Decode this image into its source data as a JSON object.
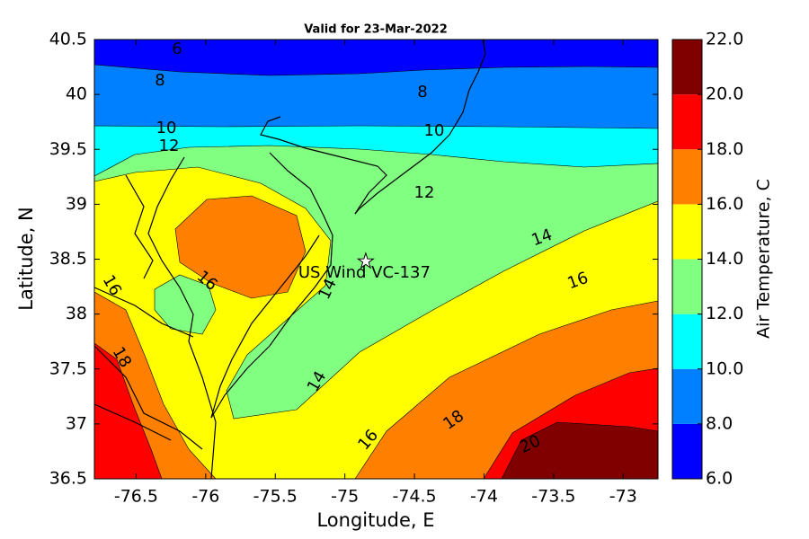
{
  "chart_data": {
    "type": "contourf",
    "title": "Valid for 23-Mar-2022",
    "x_label": "Longitude, E",
    "y_label": "Latitude, N",
    "xlim": [
      -76.8,
      -72.75
    ],
    "ylim": [
      36.5,
      40.5
    ],
    "xticks": [
      -76.5,
      -76,
      -75.5,
      -75,
      -74.5,
      -74,
      -73.5,
      -73
    ],
    "yticks": [
      36.5,
      37,
      37.5,
      38,
      38.5,
      39,
      39.5,
      40,
      40.5
    ],
    "colorbar": {
      "label": "Air Temperature, C",
      "clim": [
        6,
        22
      ],
      "ticks": [
        {
          "value": 6,
          "label": "6.0"
        },
        {
          "value": 8,
          "label": "8.0"
        },
        {
          "value": 10,
          "label": "10.0"
        },
        {
          "value": 12,
          "label": "12.0"
        },
        {
          "value": 14,
          "label": "14.0"
        },
        {
          "value": 16,
          "label": "16.0"
        },
        {
          "value": 18,
          "label": "18.0"
        },
        {
          "value": 20,
          "label": "20.0"
        },
        {
          "value": 22,
          "label": "22.0"
        }
      ],
      "colors": [
        "#0000ff",
        "#0080ff",
        "#00ffff",
        "#80ff80",
        "#ffff00",
        "#ff8000",
        "#ff0000",
        "#800000"
      ]
    },
    "contour_labels": [
      6,
      8,
      8,
      10,
      10,
      12,
      12,
      14,
      16,
      14,
      16,
      18,
      20,
      16,
      18,
      16,
      14
    ],
    "site": {
      "label": "US Wind VC-137",
      "lon": -74.85,
      "lat": 38.48
    }
  }
}
